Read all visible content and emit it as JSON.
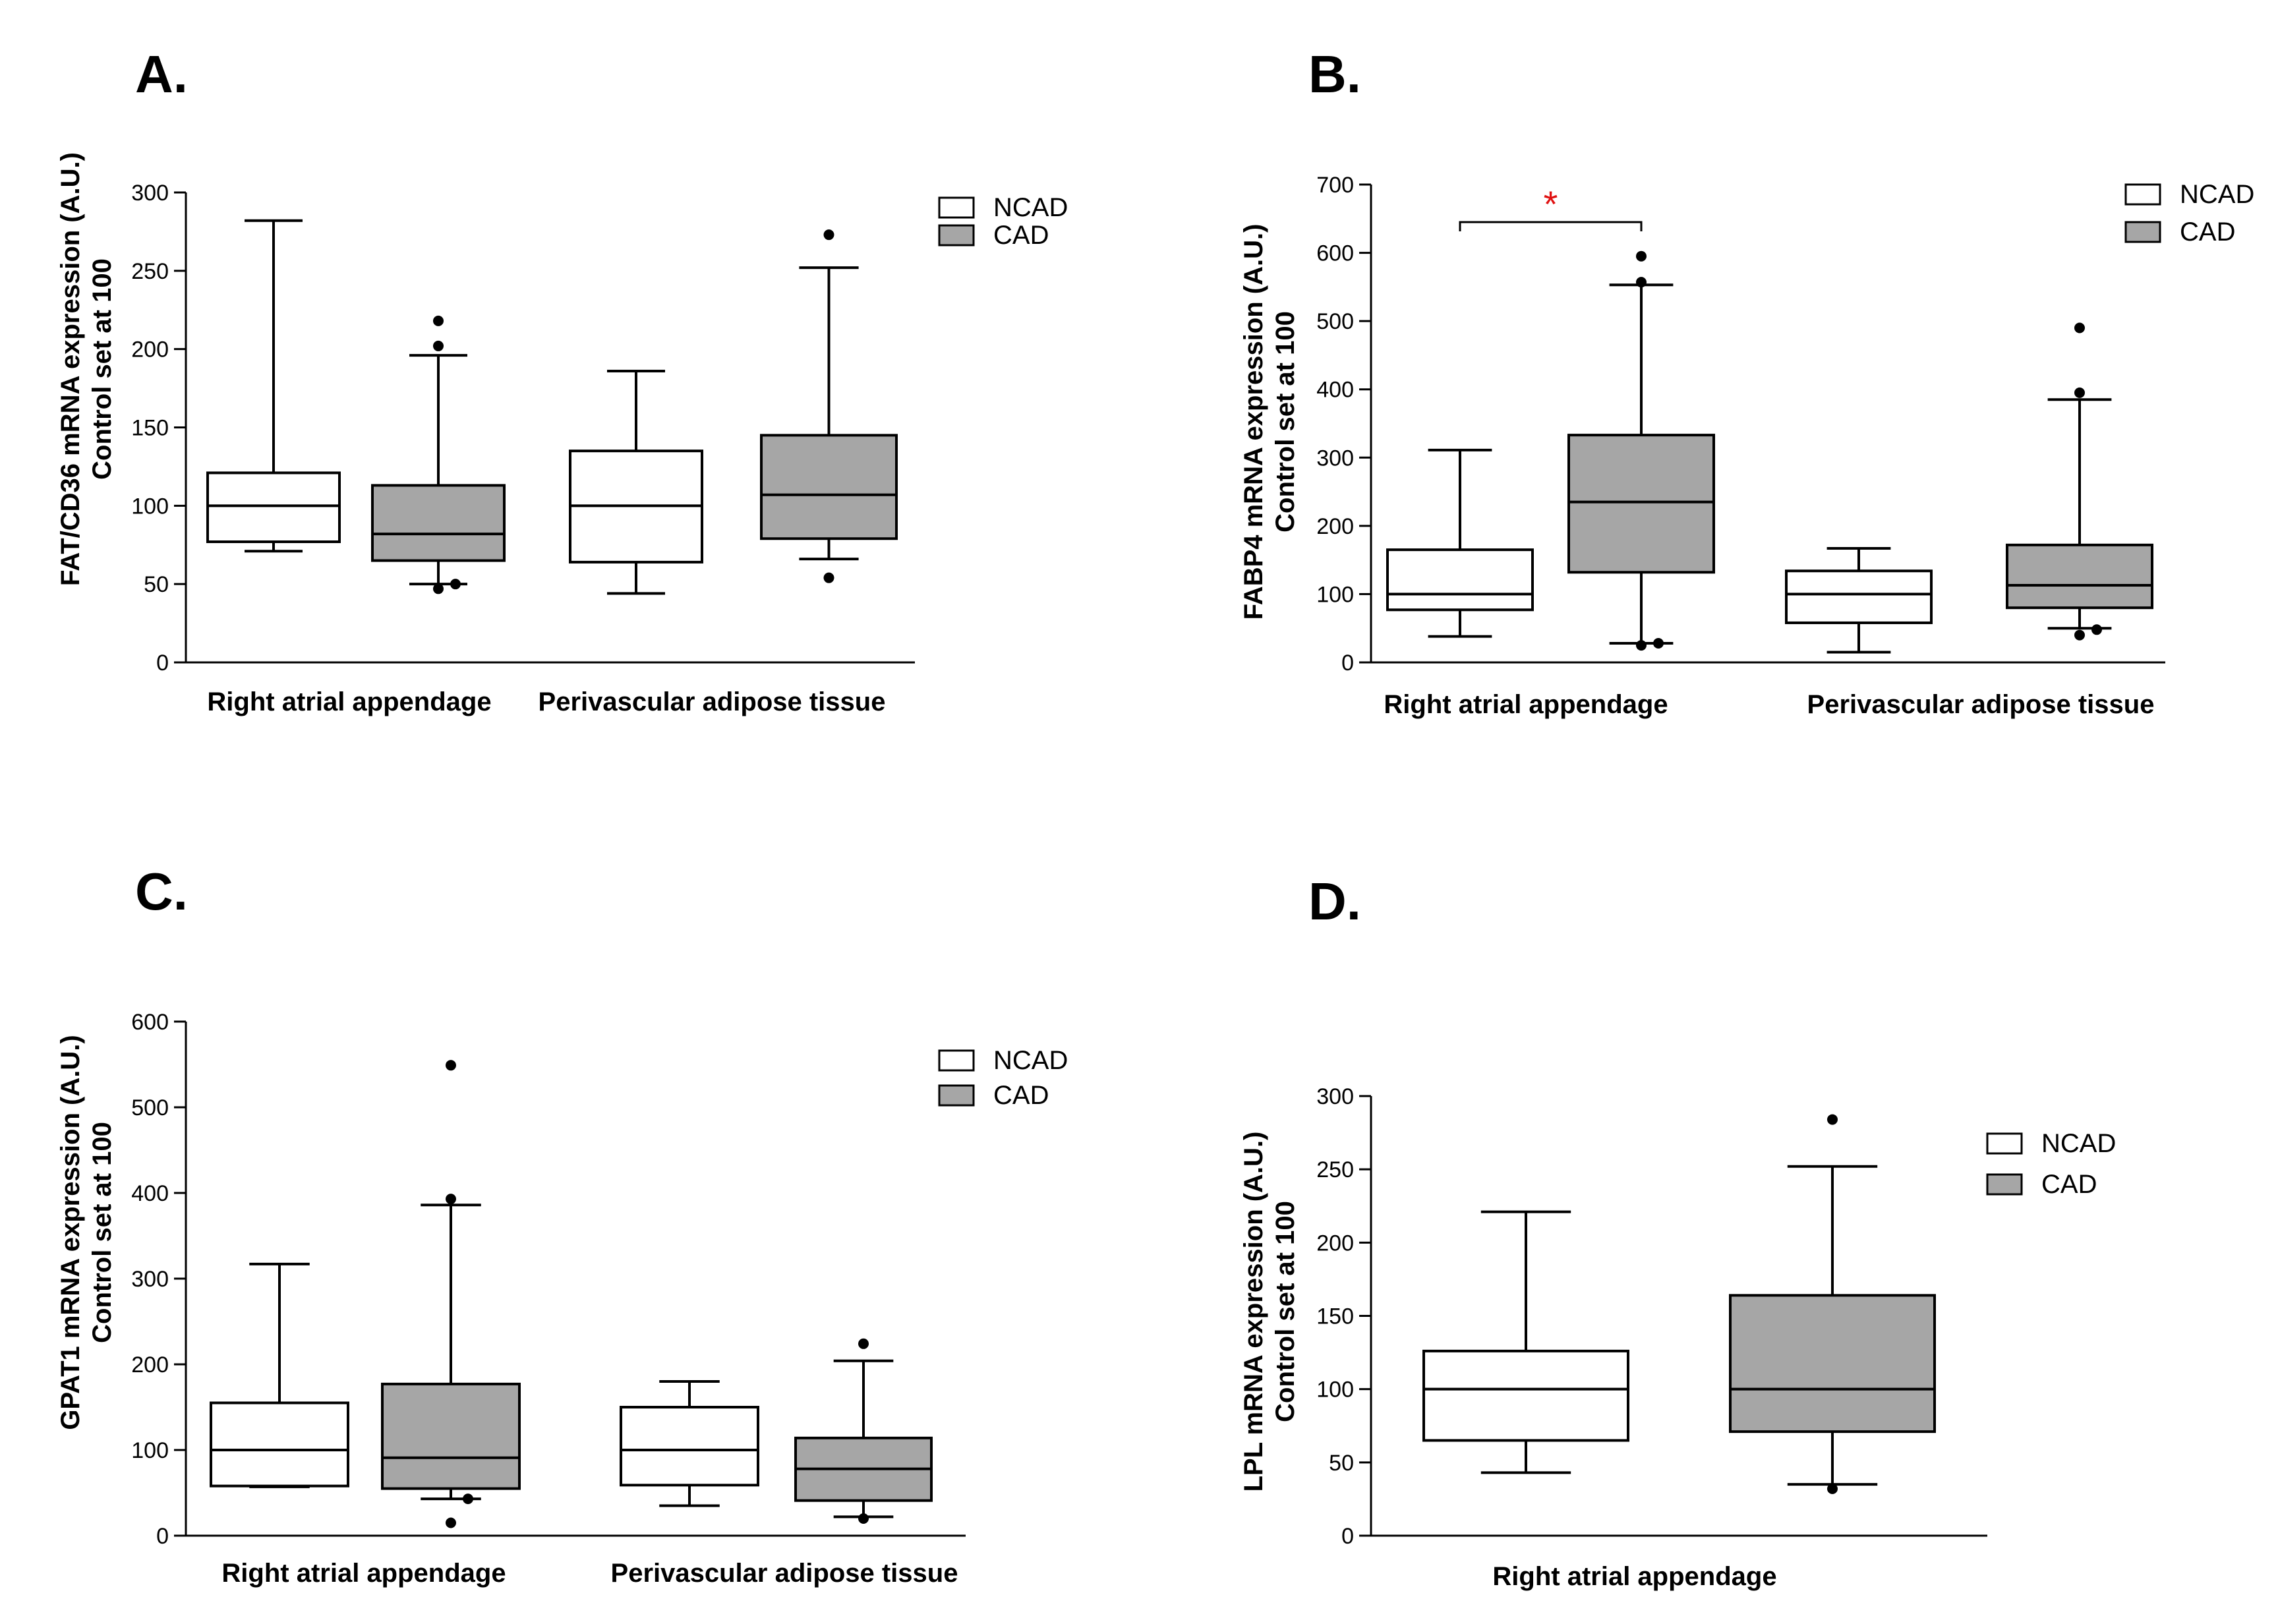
{
  "colors": {
    "ncad": "#ffffff",
    "cad": "#a6a6a6",
    "significance": "#e01010"
  },
  "legend": {
    "ncad": "NCAD",
    "cad": "CAD"
  },
  "chart_data": [
    {
      "id": "A",
      "letter": "A.",
      "type": "box",
      "ylabel_line1": "FAT/CD36 mRNA expression (A.U.)",
      "ylabel_line2": "Control set at 100",
      "ylim": [
        0,
        300
      ],
      "yticks": [
        0,
        50,
        100,
        150,
        200,
        250,
        300
      ],
      "categories": [
        "Right atrial appendage",
        "Perivascular adipose tissue"
      ],
      "series": [
        {
          "name": "NCAD",
          "boxes": [
            {
              "whisker_low": 71,
              "q1": 77,
              "median": 100,
              "q3": 121,
              "whisker_high": 282,
              "outliers": []
            },
            {
              "whisker_low": 44,
              "q1": 64,
              "median": 100,
              "q3": 135,
              "whisker_high": 186,
              "outliers": []
            }
          ]
        },
        {
          "name": "CAD",
          "boxes": [
            {
              "whisker_low": 50,
              "q1": 65,
              "median": 82,
              "q3": 113,
              "whisker_high": 196,
              "outliers": [
                47,
                50,
                202,
                218
              ]
            },
            {
              "whisker_low": 66,
              "q1": 79,
              "median": 107,
              "q3": 145,
              "whisker_high": 252,
              "outliers": [
                54,
                273
              ]
            }
          ]
        }
      ]
    },
    {
      "id": "B",
      "letter": "B.",
      "type": "box",
      "ylabel_line1": "FABP4 mRNA expression (A.U.)",
      "ylabel_line2": "Control set at 100",
      "ylim": [
        0,
        700
      ],
      "yticks": [
        0,
        100,
        200,
        300,
        400,
        500,
        600,
        700
      ],
      "categories": [
        "Right atrial appendage",
        "Perivascular adipose tissue"
      ],
      "significance": {
        "label": "*",
        "between_category": 0
      },
      "series": [
        {
          "name": "NCAD",
          "boxes": [
            {
              "whisker_low": 38,
              "q1": 77,
              "median": 100,
              "q3": 165,
              "whisker_high": 311,
              "outliers": []
            },
            {
              "whisker_low": 15,
              "q1": 58,
              "median": 100,
              "q3": 134,
              "whisker_high": 167,
              "outliers": []
            }
          ]
        },
        {
          "name": "CAD",
          "boxes": [
            {
              "whisker_low": 28,
              "q1": 132,
              "median": 235,
              "q3": 333,
              "whisker_high": 553,
              "outliers": [
                25,
                28,
                557,
                595
              ]
            },
            {
              "whisker_low": 50,
              "q1": 80,
              "median": 113,
              "q3": 172,
              "whisker_high": 385,
              "outliers": [
                40,
                48,
                395,
                490
              ]
            }
          ]
        }
      ]
    },
    {
      "id": "C",
      "letter": "C.",
      "type": "box",
      "ylabel_line1": "GPAT1 mRNA expression (A.U.)",
      "ylabel_line2": "Control set at 100",
      "ylim": [
        0,
        600
      ],
      "yticks": [
        0,
        100,
        200,
        300,
        400,
        500,
        600
      ],
      "categories": [
        "Right atrial appendage",
        "Perivascular adipose tissue"
      ],
      "series": [
        {
          "name": "NCAD",
          "boxes": [
            {
              "whisker_low": 57,
              "q1": 58,
              "median": 100,
              "q3": 155,
              "whisker_high": 317,
              "outliers": []
            },
            {
              "whisker_low": 35,
              "q1": 59,
              "median": 100,
              "q3": 150,
              "whisker_high": 180,
              "outliers": []
            }
          ]
        },
        {
          "name": "CAD",
          "boxes": [
            {
              "whisker_low": 43,
              "q1": 55,
              "median": 91,
              "q3": 177,
              "whisker_high": 386,
              "outliers": [
                15,
                43,
                393,
                549
              ]
            },
            {
              "whisker_low": 22,
              "q1": 41,
              "median": 78,
              "q3": 114,
              "whisker_high": 204,
              "outliers": [
                20,
                224
              ]
            }
          ]
        }
      ]
    },
    {
      "id": "D",
      "letter": "D.",
      "type": "box",
      "ylabel_line1": "LPL mRNA expression (A.U.)",
      "ylabel_line2": "Control set at 100",
      "ylim": [
        0,
        300
      ],
      "yticks": [
        0,
        50,
        100,
        150,
        200,
        250,
        300
      ],
      "categories": [
        "Right atrial appendage"
      ],
      "series": [
        {
          "name": "NCAD",
          "boxes": [
            {
              "whisker_low": 43,
              "q1": 65,
              "median": 100,
              "q3": 126,
              "whisker_high": 221,
              "outliers": []
            }
          ]
        },
        {
          "name": "CAD",
          "boxes": [
            {
              "whisker_low": 35,
              "q1": 71,
              "median": 100,
              "q3": 164,
              "whisker_high": 252,
              "outliers": [
                32,
                284
              ]
            }
          ]
        }
      ]
    }
  ]
}
